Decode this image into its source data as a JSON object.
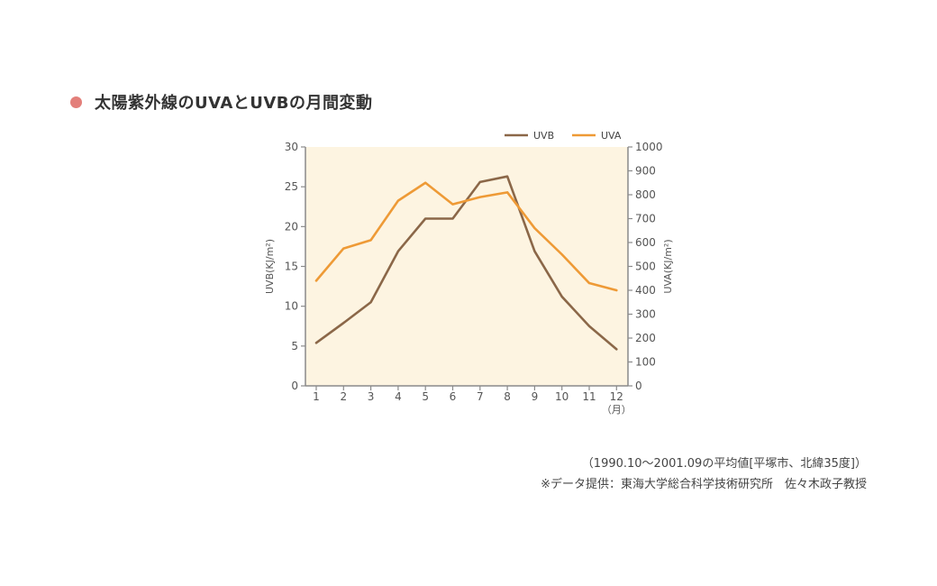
{
  "heading": "太陽紫外線のUVAとUVBの月間変動",
  "notes": [
    "（1990.10〜2001.09の平均値[平塚市、北緯35度]）",
    "※データ提供：東海大学総合科学技術研究所　佐々木政子教授"
  ],
  "colors": {
    "bullet": "#e37f7a",
    "uvb": "#8b6748",
    "uva": "#ee9a36",
    "plot_bg": "#fdf4e1",
    "axis": "#8a8a8a"
  },
  "chart_data": {
    "type": "line",
    "x": [
      1,
      2,
      3,
      4,
      5,
      6,
      7,
      8,
      9,
      10,
      11,
      12
    ],
    "x_tick_labels": [
      "1",
      "2",
      "3",
      "4",
      "5",
      "6",
      "7",
      "8",
      "9",
      "10",
      "11",
      "12"
    ],
    "x_unit": "（月）",
    "ylabel_left": "UVB(KJ/m²)",
    "ylabel_right": "UVA(KJ/m²)",
    "ylim_left": [
      0,
      30
    ],
    "ylim_right": [
      0,
      1000
    ],
    "yticks_left": [
      0,
      5,
      10,
      15,
      20,
      25,
      30
    ],
    "yticks_right": [
      0,
      100,
      200,
      300,
      400,
      500,
      600,
      700,
      800,
      900,
      1000
    ],
    "legend_position": "top-right",
    "series": [
      {
        "name": "UVB",
        "axis": "left",
        "color": "#8b6748",
        "values": [
          5.4,
          7.9,
          10.5,
          16.9,
          21.0,
          21.0,
          25.6,
          26.3,
          16.9,
          11.2,
          7.5,
          4.6
        ]
      },
      {
        "name": "UVA",
        "axis": "right",
        "color": "#ee9a36",
        "values": [
          440,
          575,
          610,
          775,
          850,
          760,
          790,
          810,
          660,
          550,
          430,
          400
        ]
      }
    ]
  }
}
